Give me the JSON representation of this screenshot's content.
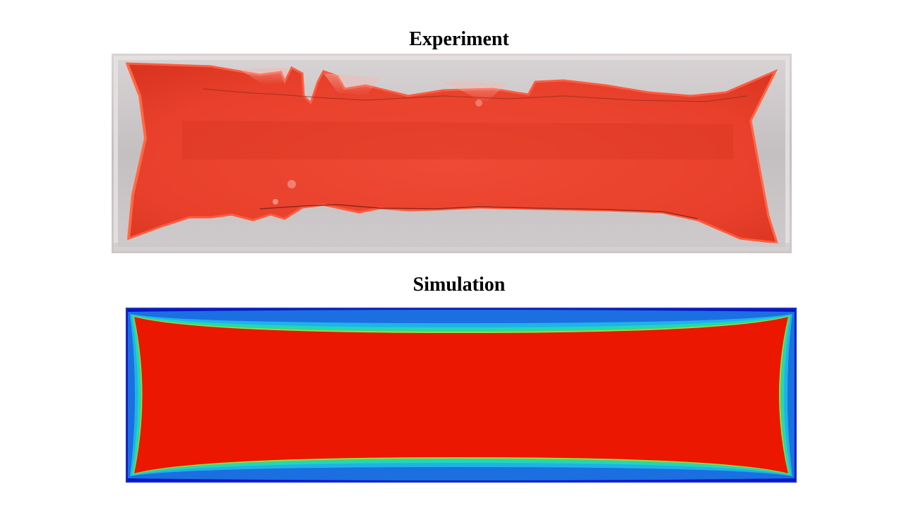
{
  "experiment": {
    "title": "Experiment",
    "colors": {
      "background": "#c9c5c6",
      "fluid": "#ea3f2b",
      "fluid_dark": "#d9311f",
      "edge": "#ff5a3c",
      "highlight": "#f3cfc9"
    }
  },
  "simulation": {
    "title": "Simulation",
    "colors": {
      "border": "#1c2fc2",
      "fluid": "#ec1700",
      "contours": [
        "#0a14c8",
        "#1b6fe0",
        "#20b2e6",
        "#22d6c0",
        "#3bd67a",
        "#8fe04a"
      ]
    }
  }
}
